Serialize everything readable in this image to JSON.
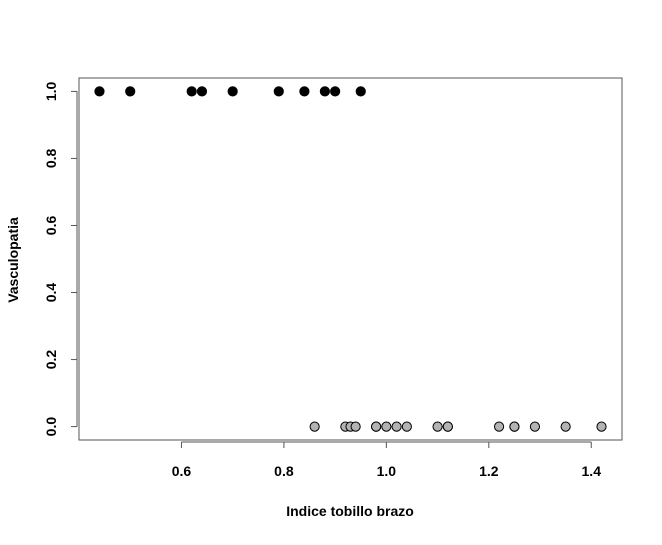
{
  "chart_data": {
    "type": "scatter",
    "title": "",
    "xlabel": "Indice tobillo brazo",
    "ylabel": "Vasculopatia",
    "xlim": [
      0.4,
      1.46
    ],
    "ylim": [
      -0.04,
      1.04
    ],
    "x_ticks": [
      0.6,
      0.8,
      1.0,
      1.2,
      1.4
    ],
    "x_tick_labels": [
      "0.6",
      "0.8",
      "1.0",
      "1.2",
      "1.4"
    ],
    "y_ticks": [
      0.0,
      0.2,
      0.4,
      0.6,
      0.8,
      1.0
    ],
    "y_tick_labels": [
      "0.0",
      "0.2",
      "0.4",
      "0.6",
      "0.8",
      "1.0"
    ],
    "grid": false,
    "legend": "none",
    "series": [
      {
        "color": "#000000",
        "x": [
          0.44,
          0.5,
          0.62,
          0.64,
          0.7,
          0.79,
          0.84,
          0.88,
          0.9,
          0.95
        ],
        "y": [
          1,
          1,
          1,
          1,
          1,
          1,
          1,
          1,
          1,
          1
        ]
      },
      {
        "color": "#b3b3b3",
        "x": [
          0.86,
          0.92,
          0.93,
          0.94,
          0.98,
          0.98,
          1.0,
          1.02,
          1.04,
          1.1,
          1.12,
          1.12,
          1.22,
          1.25,
          1.25,
          1.29,
          1.35,
          1.42
        ],
        "y": [
          0,
          0,
          0,
          0,
          0,
          0,
          0,
          0,
          0,
          0,
          0,
          0,
          0,
          0,
          0,
          0,
          0,
          0
        ]
      }
    ]
  }
}
